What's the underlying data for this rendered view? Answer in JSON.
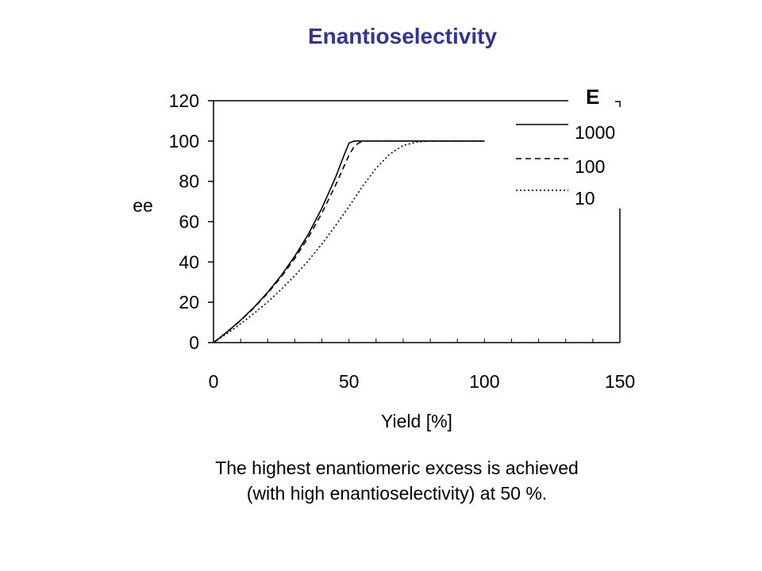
{
  "title": "Enantioselectivity",
  "caption": {
    "line1": "The highest enantiomeric excess is achieved",
    "line2": "(with high enantioselectivity) at 50 %."
  },
  "colors": {
    "title": "#333399",
    "ink": "#000000",
    "background": "#ffffff"
  },
  "chart_data": {
    "type": "line",
    "title": "",
    "xlabel": "Yield [%]",
    "ylabel": "ee",
    "xlim": [
      0,
      150
    ],
    "ylim": [
      0,
      120
    ],
    "xticks": [
      0,
      50,
      100,
      150
    ],
    "yticks": [
      0,
      20,
      40,
      60,
      80,
      100,
      120
    ],
    "grid": false,
    "legend": {
      "title": "E",
      "position": "top-right",
      "entries": [
        "1000",
        "100",
        "10"
      ]
    },
    "series": [
      {
        "name": "1000",
        "style": "solid",
        "x": [
          0,
          5,
          10,
          15,
          20,
          25,
          30,
          35,
          40,
          45,
          48,
          50,
          52,
          55,
          60,
          80,
          100
        ],
        "y": [
          0,
          5.3,
          11.1,
          17.6,
          25.0,
          33.3,
          42.9,
          53.8,
          66.7,
          81.8,
          92.3,
          99.0,
          100,
          100,
          100,
          100,
          100
        ]
      },
      {
        "name": "100",
        "style": "dashed",
        "x": [
          0,
          5,
          10,
          15,
          20,
          25,
          30,
          35,
          40,
          45,
          50,
          52,
          54,
          56,
          60,
          80,
          100
        ],
        "y": [
          0,
          5.2,
          10.9,
          17.3,
          24.5,
          32.6,
          41.8,
          52.2,
          64.2,
          78.0,
          93.0,
          97.5,
          99.3,
          100,
          100,
          100,
          100
        ]
      },
      {
        "name": "10",
        "style": "dotted",
        "x": [
          0,
          5,
          10,
          15,
          20,
          25,
          30,
          35,
          40,
          45,
          50,
          55,
          60,
          65,
          70,
          75,
          80,
          90,
          100
        ],
        "y": [
          0,
          4.5,
          9.3,
          14.5,
          20.2,
          26.4,
          33.2,
          40.7,
          48.9,
          58.0,
          67.5,
          77.5,
          86.5,
          93.5,
          97.8,
          99.5,
          100,
          100,
          100
        ]
      }
    ]
  }
}
